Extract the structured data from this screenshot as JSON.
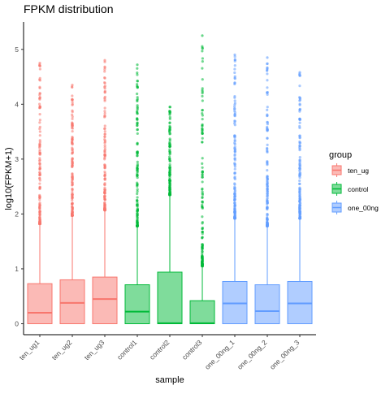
{
  "chart_data": {
    "type": "boxplot",
    "title": "FPKM distribution",
    "xlabel": "sample",
    "ylabel": "log10(FPKM+1)",
    "ylim": [
      -0.2,
      5.5
    ],
    "yticks": [
      0,
      1,
      2,
      3,
      4,
      5
    ],
    "grid": false,
    "legend": {
      "title": "group",
      "placement": "right",
      "entries": [
        {
          "label": "ten_ug",
          "color": "#F8766D"
        },
        {
          "label": "control",
          "color": "#00BA38"
        },
        {
          "label": "one_00ng",
          "color": "#619CFF"
        }
      ]
    },
    "categories": [
      "ten_ug1",
      "ten_ug2",
      "ten_ug3",
      "control1",
      "control2",
      "control3",
      "one_00ng_1",
      "one_00ng_2",
      "one_00ng_3"
    ],
    "boxes": [
      {
        "sample": "ten_ug1",
        "group": "ten_ug",
        "q1": 0,
        "median": 0.2,
        "q3": 0.73,
        "whisker_low": 0,
        "whisker_high": 1.82,
        "outlier_max": 4.75
      },
      {
        "sample": "ten_ug2",
        "group": "ten_ug",
        "q1": 0,
        "median": 0.38,
        "q3": 0.8,
        "whisker_low": 0,
        "whisker_high": 1.97,
        "outlier_max": 4.35
      },
      {
        "sample": "ten_ug3",
        "group": "ten_ug",
        "q1": 0,
        "median": 0.45,
        "q3": 0.85,
        "whisker_low": 0,
        "whisker_high": 2.07,
        "outlier_max": 4.8
      },
      {
        "sample": "control1",
        "group": "control",
        "q1": 0,
        "median": 0.22,
        "q3": 0.71,
        "whisker_low": 0,
        "whisker_high": 1.78,
        "outlier_max": 4.72
      },
      {
        "sample": "control2",
        "group": "control",
        "q1": 0,
        "median": 0.01,
        "q3": 0.94,
        "whisker_low": 0,
        "whisker_high": 2.35,
        "outlier_max": 3.95
      },
      {
        "sample": "control3",
        "group": "control",
        "q1": 0,
        "median": 0.01,
        "q3": 0.42,
        "whisker_low": 0,
        "whisker_high": 1.05,
        "outlier_max": 5.25
      },
      {
        "sample": "one_00ng_1",
        "group": "one_00ng",
        "q1": 0,
        "median": 0.37,
        "q3": 0.77,
        "whisker_low": 0,
        "whisker_high": 1.92,
        "outlier_max": 4.9
      },
      {
        "sample": "one_00ng_2",
        "group": "one_00ng",
        "q1": 0,
        "median": 0.23,
        "q3": 0.71,
        "whisker_low": 0,
        "whisker_high": 1.78,
        "outlier_max": 4.85
      },
      {
        "sample": "one_00ng_3",
        "group": "one_00ng",
        "q1": 0,
        "median": 0.37,
        "q3": 0.77,
        "whisker_low": 0,
        "whisker_high": 1.92,
        "outlier_max": 4.58
      }
    ]
  }
}
